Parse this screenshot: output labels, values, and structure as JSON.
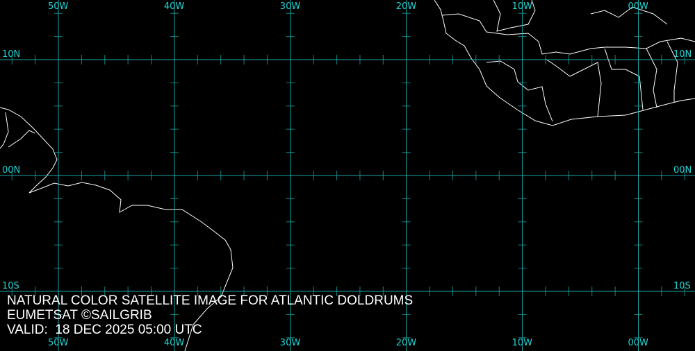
{
  "map": {
    "grid_color": "#1aa6a6",
    "label_color": "#22d4d4",
    "coast_color": "#ffffff",
    "longitudes": [
      {
        "value": -50,
        "label": "50W"
      },
      {
        "value": -40,
        "label": "40W"
      },
      {
        "value": -30,
        "label": "30W"
      },
      {
        "value": -20,
        "label": "20W"
      },
      {
        "value": -10,
        "label": "10W"
      },
      {
        "value": 0,
        "label": "00W"
      }
    ],
    "latitudes": [
      {
        "value": 10,
        "label": "10N"
      },
      {
        "value": 0,
        "label": "00N"
      },
      {
        "value": -10,
        "label": "10S"
      }
    ],
    "tick_interval_deg": 2
  },
  "caption": {
    "line1": "NATURAL COLOR SATELLITE IMAGE FOR ATLANTIC DOLDRUMS",
    "line2": "EUMETSAT ©SAILGRIB",
    "line3": "VALID:  18 DEC 2025 05:00 UTC"
  }
}
